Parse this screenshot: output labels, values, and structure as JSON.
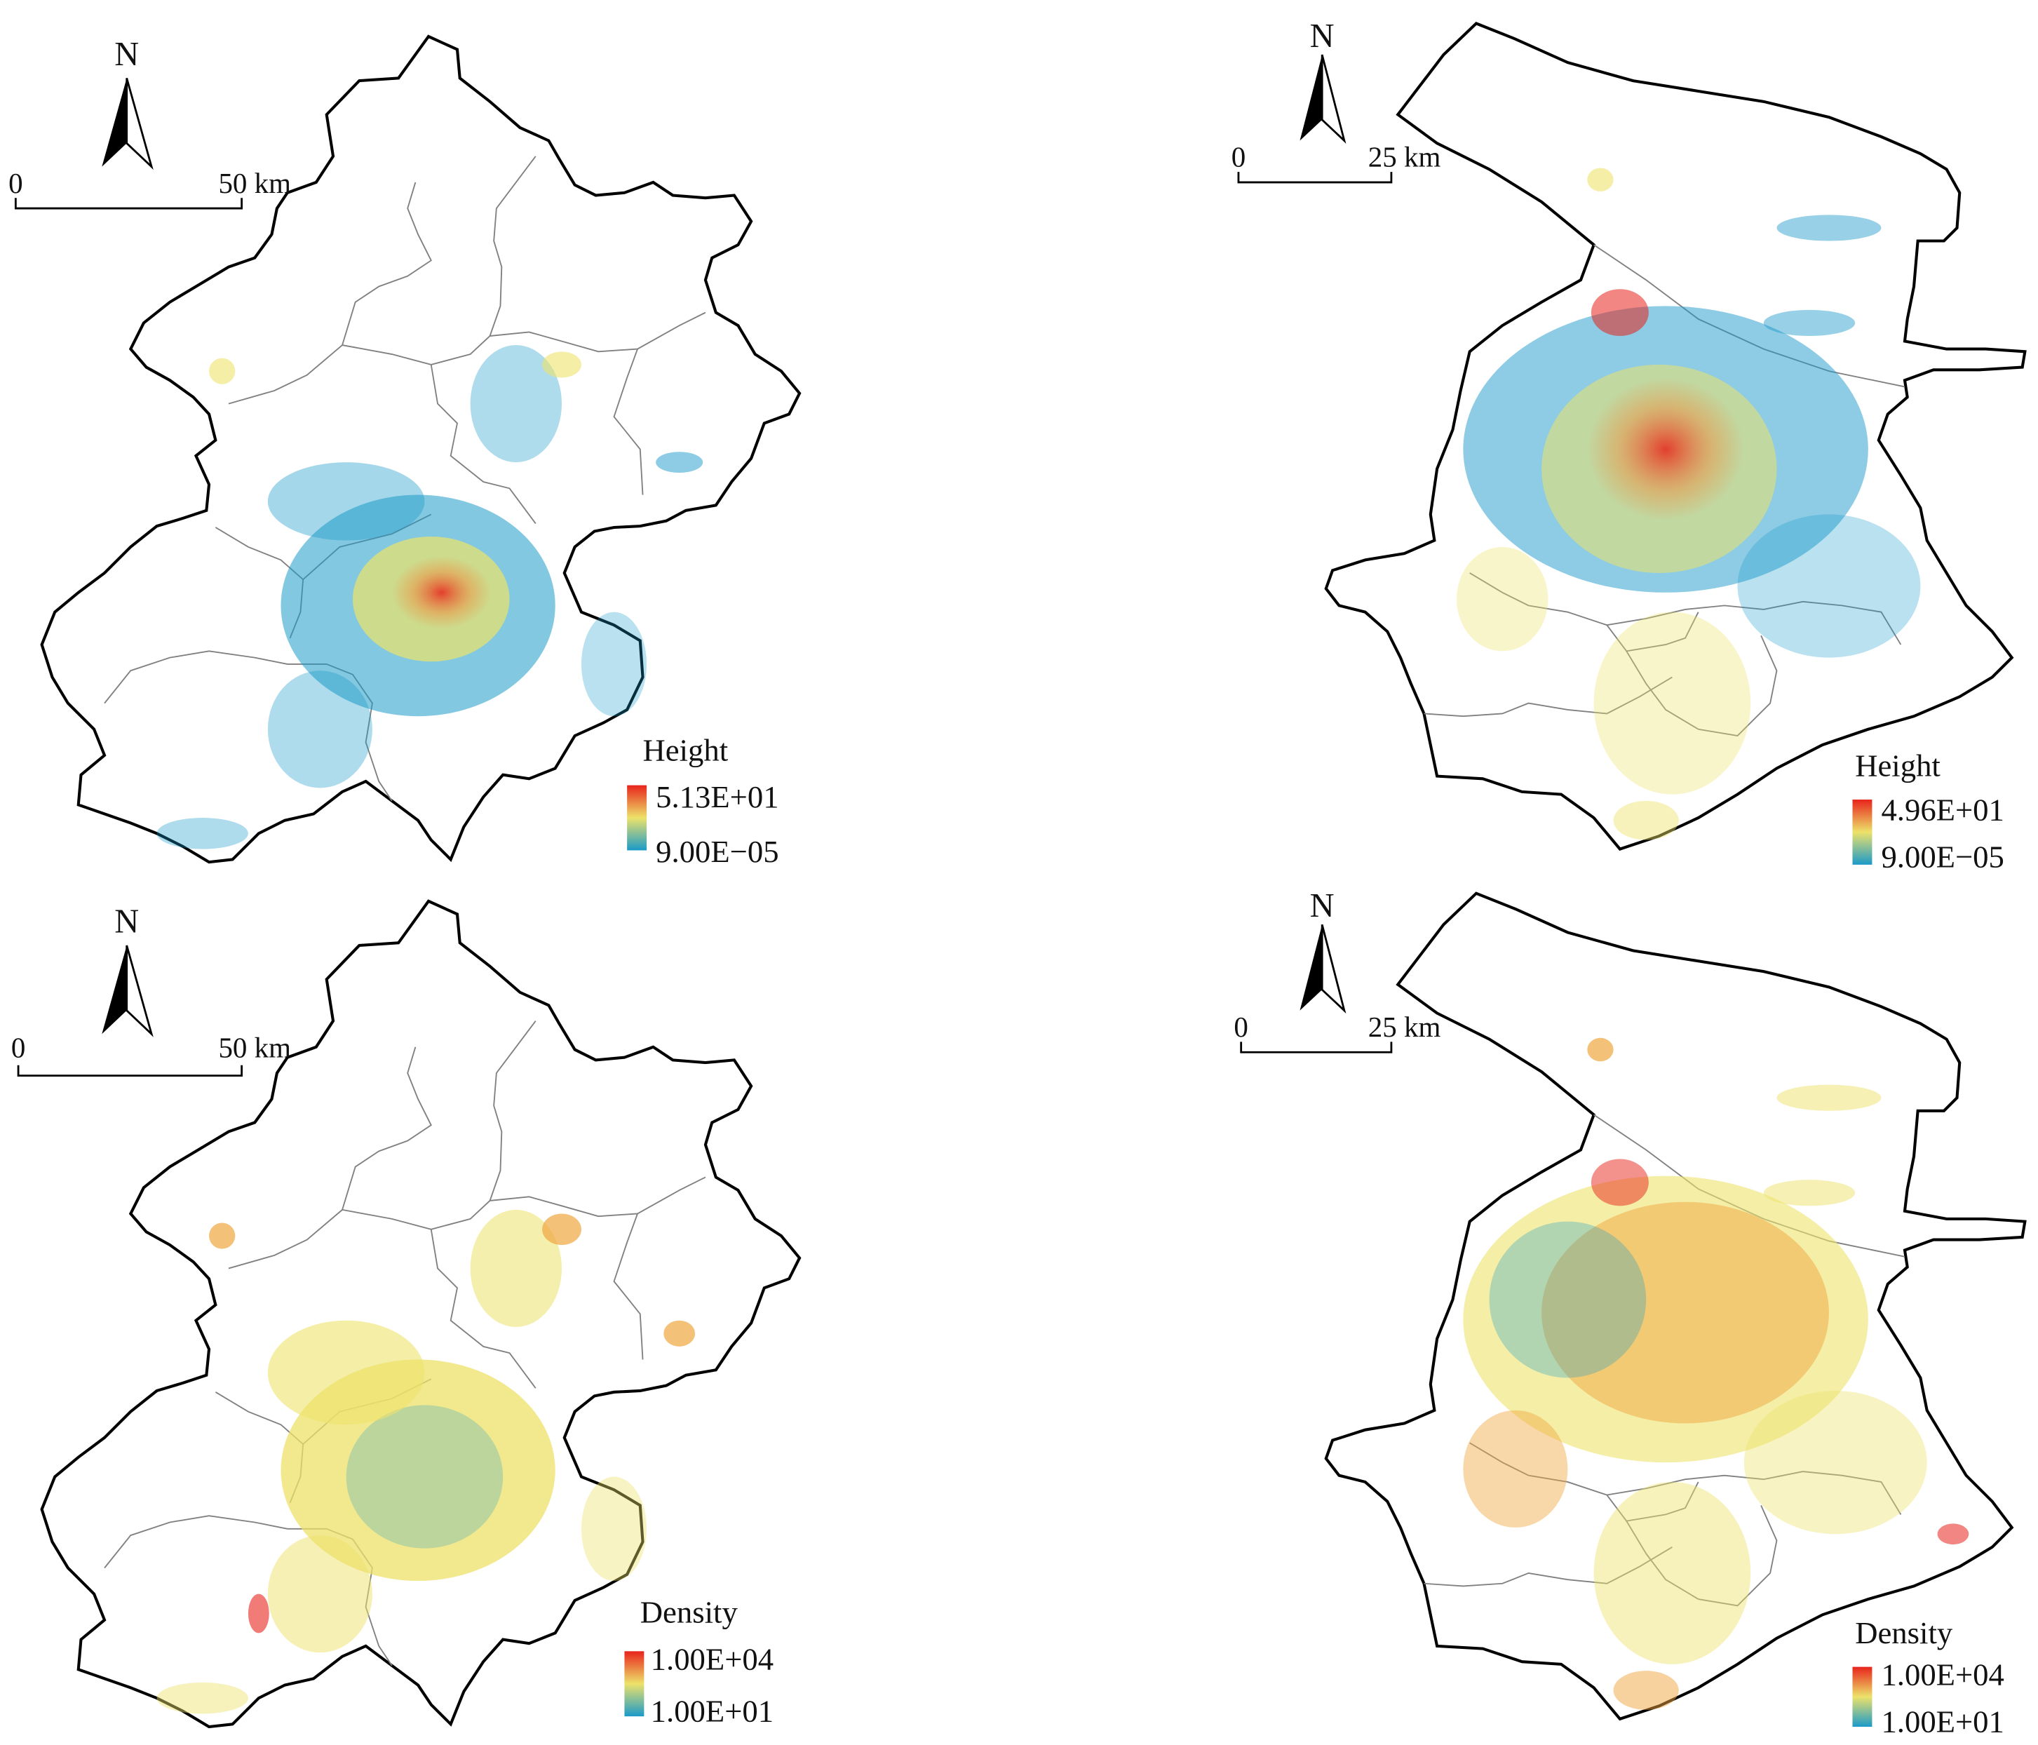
{
  "panels": [
    {
      "id": "beijing-height",
      "north_label": "N",
      "scale": {
        "zero": "0",
        "distance": "50 km"
      },
      "legend": {
        "title": "Height",
        "max": "5.13E+01",
        "min": "9.00E−05"
      },
      "colors": {
        "high": "#e8231c",
        "mid": "#ede26a",
        "low": "#1b9ac9"
      }
    },
    {
      "id": "shanghai-height",
      "north_label": "N",
      "scale": {
        "zero": "0",
        "distance": "25 km"
      },
      "legend": {
        "title": "Height",
        "max": "4.96E+01",
        "min": "9.00E−05"
      },
      "colors": {
        "high": "#e8231c",
        "mid": "#ede26a",
        "low": "#1b9ac9"
      }
    },
    {
      "id": "beijing-density",
      "north_label": "N",
      "scale": {
        "zero": "0",
        "distance": "50 km"
      },
      "legend": {
        "title": "Density",
        "max": "1.00E+04",
        "min": "1.00E+01"
      },
      "colors": {
        "high": "#e8231c",
        "mid": "#ede26a",
        "low": "#1b9ac9"
      }
    },
    {
      "id": "shanghai-density",
      "north_label": "N",
      "scale": {
        "zero": "0",
        "distance": "25 km"
      },
      "legend": {
        "title": "Density",
        "max": "1.00E+04",
        "min": "1.00E+01"
      },
      "colors": {
        "high": "#e8231c",
        "mid": "#ede26a",
        "low": "#1b9ac9"
      }
    }
  ]
}
